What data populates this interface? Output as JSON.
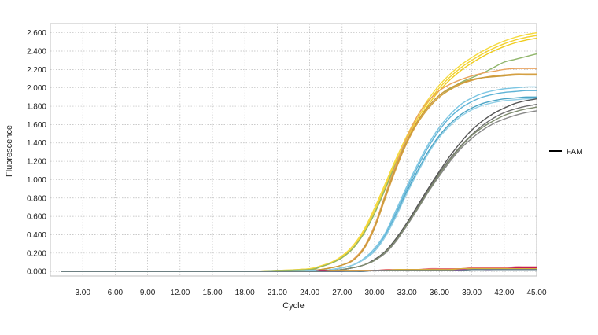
{
  "chart_data": {
    "type": "line",
    "title": "",
    "xlabel": "Cycle",
    "ylabel": "Fluorescence",
    "xlim": [
      0,
      45
    ],
    "ylim": [
      -0.05,
      2.7
    ],
    "xticks": [
      3,
      6,
      9,
      12,
      15,
      18,
      21,
      24,
      27,
      30,
      33,
      36,
      39,
      42,
      45
    ],
    "xtick_labels": [
      "3.00",
      "6.00",
      "9.00",
      "12.00",
      "15.00",
      "18.00",
      "21.00",
      "24.00",
      "27.00",
      "30.00",
      "33.00",
      "36.00",
      "39.00",
      "42.00",
      "45.00"
    ],
    "yticks": [
      0,
      0.2,
      0.4,
      0.6,
      0.8,
      1.0,
      1.2,
      1.4,
      1.6,
      1.8,
      2.0,
      2.2,
      2.4,
      2.6
    ],
    "ytick_labels": [
      "0.000",
      "0.200",
      "0.400",
      "0.600",
      "0.800",
      "1.000",
      "1.200",
      "1.400",
      "1.600",
      "1.800",
      "2.000",
      "2.200",
      "2.400",
      "2.600"
    ],
    "grid": true,
    "legend": {
      "position": "right",
      "entries": [
        {
          "label": "FAM",
          "color": "#000000"
        }
      ]
    },
    "x": [
      1,
      3,
      6,
      9,
      12,
      15,
      18,
      21,
      24,
      25,
      26,
      27,
      28,
      29,
      30,
      31,
      32,
      33,
      34,
      35,
      36,
      37,
      38,
      39,
      40,
      41,
      42,
      43,
      44,
      45
    ],
    "series": [
      {
        "group": "yellow",
        "color": "#F2D12E",
        "values": [
          0.0,
          0.0,
          0.0,
          0.0,
          0.0,
          0.0,
          0.0,
          0.01,
          0.03,
          0.06,
          0.1,
          0.16,
          0.26,
          0.43,
          0.66,
          0.93,
          1.2,
          1.45,
          1.67,
          1.85,
          2.0,
          2.12,
          2.22,
          2.3,
          2.37,
          2.43,
          2.48,
          2.52,
          2.55,
          2.57
        ]
      },
      {
        "group": "yellow",
        "color": "#F5DA3C",
        "values": [
          0.0,
          0.0,
          0.0,
          0.0,
          0.0,
          0.0,
          0.0,
          0.01,
          0.03,
          0.06,
          0.1,
          0.17,
          0.28,
          0.45,
          0.69,
          0.96,
          1.23,
          1.48,
          1.7,
          1.88,
          2.03,
          2.15,
          2.25,
          2.33,
          2.4,
          2.46,
          2.51,
          2.55,
          2.58,
          2.6
        ]
      },
      {
        "group": "yellow",
        "color": "#EFCC1E",
        "values": [
          0.0,
          0.0,
          0.0,
          0.0,
          0.0,
          0.0,
          0.0,
          0.01,
          0.02,
          0.05,
          0.09,
          0.15,
          0.25,
          0.41,
          0.63,
          0.9,
          1.17,
          1.42,
          1.64,
          1.82,
          1.97,
          2.09,
          2.19,
          2.27,
          2.34,
          2.4,
          2.45,
          2.49,
          2.52,
          2.54
        ]
      },
      {
        "group": "green",
        "color": "#8FB56A",
        "values": [
          0.0,
          0.0,
          0.0,
          0.0,
          0.0,
          0.0,
          0.0,
          0.01,
          0.02,
          0.05,
          0.09,
          0.15,
          0.25,
          0.41,
          0.63,
          0.9,
          1.18,
          1.42,
          1.62,
          1.78,
          1.9,
          1.99,
          2.06,
          2.11,
          2.16,
          2.22,
          2.28,
          2.31,
          2.34,
          2.37
        ]
      },
      {
        "group": "orange",
        "color": "#E9A35E",
        "values": [
          0.0,
          0.0,
          0.0,
          0.0,
          0.0,
          0.0,
          0.0,
          0.0,
          0.01,
          0.02,
          0.04,
          0.07,
          0.13,
          0.26,
          0.5,
          0.84,
          1.17,
          1.46,
          1.7,
          1.86,
          1.97,
          2.04,
          2.09,
          2.13,
          2.16,
          2.18,
          2.2,
          2.21,
          2.21,
          2.21
        ]
      },
      {
        "group": "orange",
        "color": "#D9A040",
        "values": [
          0.0,
          0.0,
          0.0,
          0.0,
          0.0,
          0.0,
          0.0,
          0.0,
          0.01,
          0.02,
          0.04,
          0.07,
          0.12,
          0.24,
          0.47,
          0.8,
          1.12,
          1.4,
          1.62,
          1.78,
          1.9,
          1.98,
          2.04,
          2.08,
          2.11,
          2.13,
          2.14,
          2.15,
          2.15,
          2.15
        ]
      },
      {
        "group": "orange",
        "color": "#C99A3C",
        "values": [
          0.0,
          0.0,
          0.0,
          0.0,
          0.0,
          0.0,
          0.0,
          0.0,
          0.01,
          0.02,
          0.04,
          0.07,
          0.12,
          0.25,
          0.48,
          0.82,
          1.14,
          1.42,
          1.64,
          1.8,
          1.92,
          2.0,
          2.05,
          2.09,
          2.11,
          2.12,
          2.13,
          2.14,
          2.14,
          2.14
        ]
      },
      {
        "group": "blue",
        "color": "#5FB3D6",
        "values": [
          0.0,
          0.0,
          0.0,
          0.0,
          0.0,
          0.0,
          0.0,
          0.0,
          0.01,
          0.01,
          0.02,
          0.04,
          0.07,
          0.13,
          0.23,
          0.4,
          0.64,
          0.9,
          1.14,
          1.36,
          1.54,
          1.68,
          1.78,
          1.85,
          1.9,
          1.93,
          1.95,
          1.96,
          1.97,
          1.97
        ]
      },
      {
        "group": "blue",
        "color": "#7CC6E3",
        "values": [
          0.0,
          0.0,
          0.0,
          0.0,
          0.0,
          0.0,
          0.0,
          0.0,
          0.01,
          0.01,
          0.02,
          0.04,
          0.07,
          0.14,
          0.25,
          0.42,
          0.67,
          0.93,
          1.17,
          1.39,
          1.57,
          1.71,
          1.82,
          1.89,
          1.94,
          1.97,
          1.99,
          2.0,
          2.01,
          2.01
        ]
      },
      {
        "group": "blue",
        "color": "#4AA3C4",
        "values": [
          0.0,
          0.0,
          0.0,
          0.0,
          0.0,
          0.0,
          0.0,
          0.0,
          0.01,
          0.01,
          0.02,
          0.04,
          0.07,
          0.13,
          0.22,
          0.38,
          0.61,
          0.87,
          1.1,
          1.31,
          1.48,
          1.61,
          1.71,
          1.78,
          1.83,
          1.86,
          1.88,
          1.89,
          1.9,
          1.9
        ]
      },
      {
        "group": "blue",
        "color": "#92CFE6",
        "values": [
          0.0,
          0.0,
          0.0,
          0.0,
          0.0,
          0.0,
          0.0,
          0.0,
          0.01,
          0.01,
          0.02,
          0.04,
          0.07,
          0.13,
          0.22,
          0.38,
          0.6,
          0.85,
          1.08,
          1.29,
          1.46,
          1.59,
          1.69,
          1.76,
          1.81,
          1.84,
          1.86,
          1.87,
          1.88,
          1.88
        ]
      },
      {
        "group": "gray",
        "color": "#555555",
        "values": [
          0.0,
          0.0,
          0.0,
          0.0,
          0.0,
          0.0,
          0.0,
          0.0,
          0.0,
          0.01,
          0.01,
          0.02,
          0.04,
          0.07,
          0.13,
          0.22,
          0.36,
          0.53,
          0.72,
          0.91,
          1.09,
          1.26,
          1.41,
          1.54,
          1.64,
          1.72,
          1.78,
          1.83,
          1.86,
          1.88
        ]
      },
      {
        "group": "gray",
        "color": "#6E6E6E",
        "values": [
          0.0,
          0.0,
          0.0,
          0.0,
          0.0,
          0.0,
          0.0,
          0.0,
          0.0,
          0.01,
          0.01,
          0.02,
          0.04,
          0.07,
          0.12,
          0.21,
          0.34,
          0.51,
          0.7,
          0.89,
          1.07,
          1.23,
          1.37,
          1.49,
          1.59,
          1.67,
          1.73,
          1.77,
          1.8,
          1.82
        ]
      },
      {
        "group": "gray",
        "color": "#888888",
        "values": [
          0.0,
          0.0,
          0.0,
          0.0,
          0.0,
          0.0,
          0.0,
          0.0,
          0.0,
          0.01,
          0.01,
          0.02,
          0.04,
          0.07,
          0.12,
          0.2,
          0.33,
          0.5,
          0.68,
          0.87,
          1.04,
          1.2,
          1.34,
          1.45,
          1.54,
          1.61,
          1.66,
          1.7,
          1.73,
          1.75
        ]
      },
      {
        "group": "gray",
        "color": "#7E8B6E",
        "values": [
          0.0,
          0.0,
          0.0,
          0.0,
          0.0,
          0.0,
          0.0,
          0.0,
          0.0,
          0.01,
          0.01,
          0.02,
          0.04,
          0.07,
          0.12,
          0.21,
          0.34,
          0.51,
          0.69,
          0.88,
          1.06,
          1.22,
          1.36,
          1.48,
          1.57,
          1.64,
          1.7,
          1.74,
          1.77,
          1.79
        ]
      },
      {
        "group": "flat",
        "color": "#C2185B",
        "values": [
          0.0,
          0.0,
          0.0,
          0.0,
          0.0,
          0.0,
          0.0,
          0.0,
          0.0,
          0.01,
          0.01,
          0.01,
          0.01,
          0.01,
          0.01,
          0.01,
          0.01,
          0.02,
          0.02,
          0.02,
          0.02,
          0.02,
          0.02,
          0.03,
          0.03,
          0.03,
          0.03,
          0.04,
          0.04,
          0.04
        ]
      },
      {
        "group": "flat",
        "color": "#9C27B0",
        "values": [
          0.0,
          0.0,
          0.0,
          0.0,
          0.0,
          0.0,
          0.0,
          0.0,
          0.0,
          0.0,
          0.0,
          0.0,
          0.01,
          0.01,
          0.01,
          0.01,
          0.01,
          0.01,
          0.01,
          0.02,
          0.02,
          0.02,
          0.02,
          0.02,
          0.02,
          0.02,
          0.03,
          0.03,
          0.03,
          0.03
        ]
      },
      {
        "group": "flat",
        "color": "#E57373",
        "values": [
          0.0,
          0.0,
          0.0,
          0.0,
          0.0,
          0.0,
          0.0,
          0.0,
          0.0,
          0.0,
          0.0,
          0.01,
          0.01,
          0.01,
          0.01,
          0.02,
          0.02,
          0.02,
          0.02,
          0.03,
          0.03,
          0.03,
          0.03,
          0.04,
          0.04,
          0.04,
          0.04,
          0.05,
          0.05,
          0.05
        ]
      },
      {
        "group": "flat",
        "color": "#D4AF37",
        "values": [
          0.0,
          0.0,
          0.0,
          0.0,
          0.0,
          0.0,
          0.0,
          0.0,
          0.0,
          0.0,
          0.01,
          0.01,
          0.01,
          0.01,
          0.01,
          0.01,
          0.02,
          0.02,
          0.02,
          0.02,
          0.02,
          0.02,
          0.03,
          0.03,
          0.03,
          0.03,
          0.03,
          0.03,
          0.03,
          0.03
        ]
      },
      {
        "group": "flat",
        "color": "#607D8B",
        "values": [
          0.0,
          0.0,
          0.0,
          0.0,
          0.0,
          0.0,
          0.0,
          0.0,
          0.0,
          0.0,
          0.0,
          0.0,
          0.0,
          0.0,
          0.01,
          0.01,
          0.01,
          0.01,
          0.01,
          0.01,
          0.01,
          0.01,
          0.01,
          0.02,
          0.02,
          0.02,
          0.02,
          0.02,
          0.02,
          0.02
        ]
      }
    ]
  }
}
